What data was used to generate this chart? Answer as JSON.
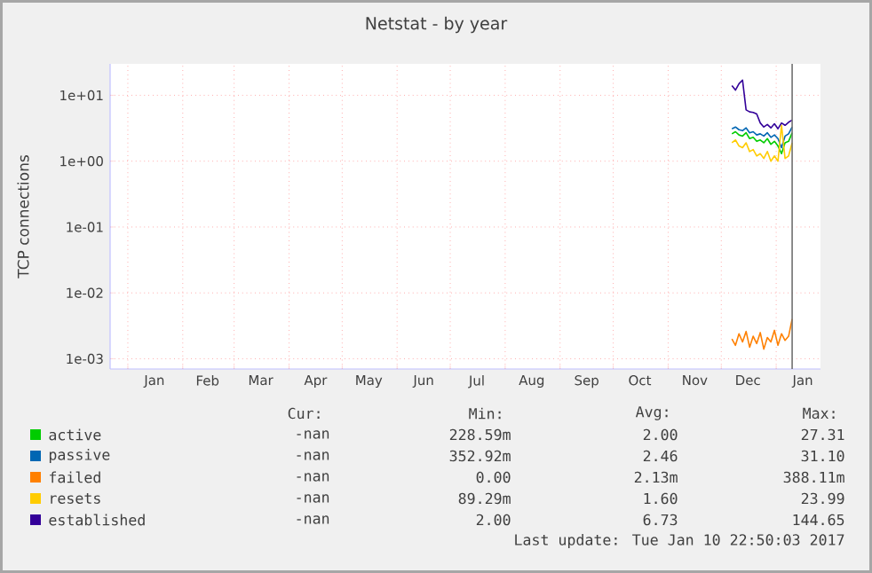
{
  "chart_data": {
    "type": "line",
    "title": "Netstat - by year",
    "ylabel": "TCP connections",
    "x": [
      "2016-12-07",
      "2016-12-09",
      "2016-12-11",
      "2016-12-13",
      "2016-12-15",
      "2016-12-17",
      "2016-12-19",
      "2016-12-21",
      "2016-12-23",
      "2016-12-25",
      "2016-12-27",
      "2016-12-29",
      "2016-12-31",
      "2017-01-02",
      "2017-01-04",
      "2017-01-06",
      "2017-01-08",
      "2017-01-10"
    ],
    "series": [
      {
        "name": "active",
        "color": "#00cc00",
        "values": [
          2.6,
          2.8,
          2.5,
          2.4,
          2.7,
          2.2,
          2.3,
          2.0,
          2.1,
          1.9,
          2.2,
          1.8,
          2.0,
          1.7,
          1.3,
          1.9,
          2.0,
          2.7
        ]
      },
      {
        "name": "passive",
        "color": "#0066b3",
        "values": [
          3.1,
          3.3,
          3.0,
          2.9,
          3.2,
          2.7,
          2.8,
          2.5,
          2.6,
          2.4,
          2.7,
          2.3,
          2.5,
          2.2,
          1.6,
          2.4,
          2.6,
          3.3
        ]
      },
      {
        "name": "failed",
        "color": "#ff8000",
        "values": [
          0.002,
          0.0016,
          0.0024,
          0.0018,
          0.0026,
          0.0015,
          0.0022,
          0.0017,
          0.0025,
          0.0014,
          0.0021,
          0.0018,
          0.0027,
          0.0016,
          0.0024,
          0.0019,
          0.0022,
          0.004
        ]
      },
      {
        "name": "resets",
        "color": "#ffcc00",
        "values": [
          1.9,
          2.1,
          1.7,
          1.6,
          1.9,
          1.4,
          1.5,
          1.2,
          1.3,
          1.1,
          1.4,
          1.0,
          1.2,
          1.0,
          3.5,
          1.1,
          1.2,
          1.9
        ]
      },
      {
        "name": "established",
        "color": "#330099",
        "values": [
          14,
          12,
          15,
          17,
          6,
          5.6,
          5.5,
          5.2,
          3.8,
          3.3,
          3.6,
          3.2,
          3.7,
          3.1,
          3.8,
          3.5,
          3.9,
          4.2
        ]
      }
    ],
    "xlim": [
      "2015-12-22",
      "2017-01-26"
    ],
    "xticks": [
      {
        "value": "2016-01-01",
        "label": null
      },
      {
        "value": "2016-02-01",
        "label": null
      },
      {
        "value": "2016-03-01",
        "label": null
      },
      {
        "value": "2016-04-01",
        "label": null
      },
      {
        "value": "2016-05-01",
        "label": null
      },
      {
        "value": "2016-06-01",
        "label": null
      },
      {
        "value": "2016-07-01",
        "label": null
      },
      {
        "value": "2016-08-01",
        "label": null
      },
      {
        "value": "2016-09-01",
        "label": null
      },
      {
        "value": "2016-10-01",
        "label": null
      },
      {
        "value": "2016-11-01",
        "label": null
      },
      {
        "value": "2016-12-01",
        "label": null
      },
      {
        "value": "2017-01-01",
        "label": null
      },
      {
        "value": "2016-01-16",
        "label": "Jan"
      },
      {
        "value": "2016-02-15",
        "label": "Feb"
      },
      {
        "value": "2016-03-16",
        "label": "Mar"
      },
      {
        "value": "2016-04-16",
        "label": "Apr"
      },
      {
        "value": "2016-05-16",
        "label": "May"
      },
      {
        "value": "2016-06-16",
        "label": "Jun"
      },
      {
        "value": "2016-07-16",
        "label": "Jul"
      },
      {
        "value": "2016-08-16",
        "label": "Aug"
      },
      {
        "value": "2016-09-16",
        "label": "Sep"
      },
      {
        "value": "2016-10-16",
        "label": "Oct"
      },
      {
        "value": "2016-11-16",
        "label": "Nov"
      },
      {
        "value": "2016-12-16",
        "label": "Dec"
      },
      {
        "value": "2017-01-16",
        "label": "Jan"
      }
    ],
    "ylim": [
      0.0007,
      30
    ],
    "yticks": [
      {
        "value": 0.001,
        "label": "1e-03"
      },
      {
        "value": 0.01,
        "label": "1e-02"
      },
      {
        "value": 0.1,
        "label": "1e-01"
      },
      {
        "value": 1,
        "label": "1e+00"
      },
      {
        "value": 10,
        "label": "1e+01"
      }
    ],
    "log": true,
    "grid": true,
    "legend": "bottom",
    "ref_lines": [
      {
        "axis": "x",
        "value": "2017-01-10",
        "color": "#707070"
      }
    ],
    "annotations": [
      "Cur:",
      "Min:",
      "Avg:",
      "Max:",
      "-nan",
      "228.59m",
      "2.00",
      "27.31",
      "-nan",
      "352.92m",
      "2.46",
      "31.10",
      "-nan",
      "0.00",
      "2.13m",
      "388.11m",
      "-nan",
      "89.29m",
      "1.60",
      "23.99",
      "-nan",
      "2.00",
      "6.73",
      "144.65",
      "Last update: Tue Jan 10 22:50:03 2017"
    ]
  }
}
